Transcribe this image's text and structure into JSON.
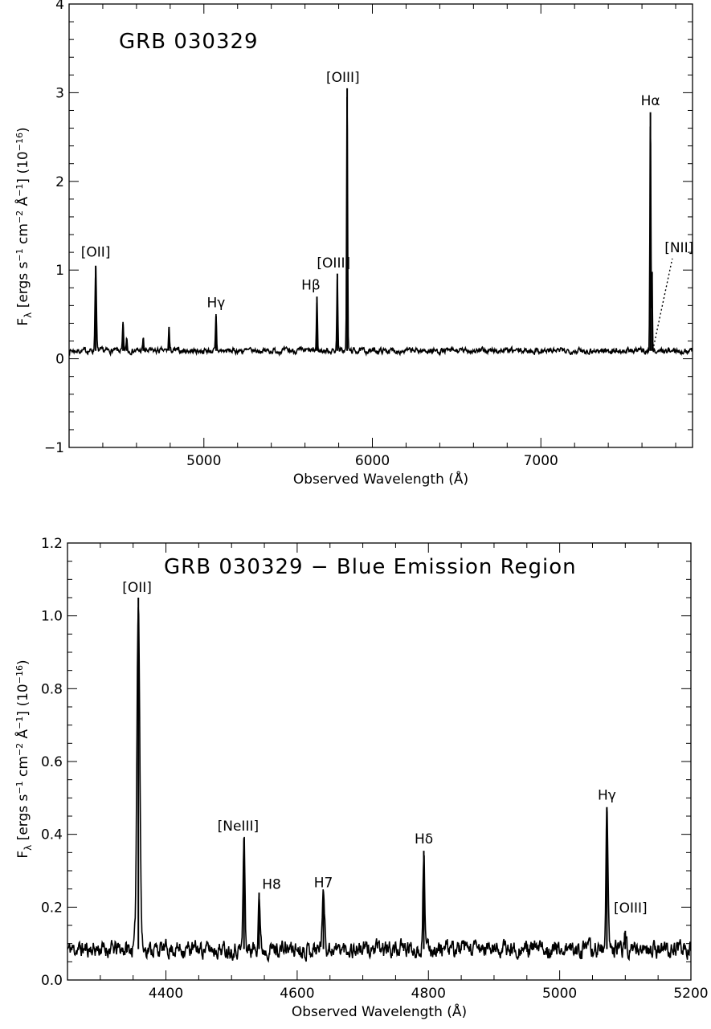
{
  "chart_data": [
    {
      "type": "line",
      "title": "GRB 030329",
      "xlabel": "Observed Wavelength (Å)",
      "ylabel_parts": {
        "f": "F",
        "lambda": "λ",
        "rest": " [ergs s",
        "exp1": "−1",
        "cm": " cm",
        "exp2": "−2",
        "ang": " Å",
        "exp3": "−1",
        "close": "] (10",
        "exp4": "−16",
        "end": ")"
      },
      "xlim": [
        4200,
        7900
      ],
      "ylim": [
        -1,
        4
      ],
      "x_ticks": [
        5000,
        6000,
        7000
      ],
      "x_tick_labels": [
        "5000",
        "6000",
        "7000"
      ],
      "y_ticks": [
        -1,
        0,
        1,
        2,
        3,
        4
      ],
      "y_tick_labels": [
        "−1",
        "0",
        "1",
        "2",
        "3",
        "4"
      ],
      "continuum": 0.09,
      "noise": 0.025,
      "seed": 7,
      "emission_lines": [
        {
          "x": 4358,
          "peak": 1.05,
          "width": 4
        },
        {
          "x": 4520,
          "peak": 0.39,
          "width": 3
        },
        {
          "x": 4542,
          "peak": 0.23,
          "width": 3
        },
        {
          "x": 4640,
          "peak": 0.23,
          "width": 3
        },
        {
          "x": 4793,
          "peak": 0.36,
          "width": 3
        },
        {
          "x": 5072,
          "peak": 0.48,
          "width": 3
        },
        {
          "x": 5671,
          "peak": 0.7,
          "width": 3
        },
        {
          "x": 5792,
          "peak": 0.96,
          "width": 3
        },
        {
          "x": 5850,
          "peak": 3.05,
          "width": 3
        },
        {
          "x": 7650,
          "peak": 2.78,
          "width": 3
        },
        {
          "x": 7660,
          "peak": 0.98,
          "width": 2
        }
      ],
      "annotations": [
        {
          "label": "[OII]",
          "x": 4358,
          "y": 1.15
        },
        {
          "label": "Hγ",
          "x": 5072,
          "y": 0.58
        },
        {
          "label": "Hβ",
          "x": 5635,
          "y": 0.78
        },
        {
          "label": "[OIII]",
          "x": 5770,
          "y": 1.03
        },
        {
          "label": "[OIII]",
          "x": 5825,
          "y": 3.12
        },
        {
          "label": "Hα",
          "x": 7650,
          "y": 2.86
        },
        {
          "label": "[NII]",
          "x": 7820,
          "y": 1.2
        }
      ]
    },
    {
      "type": "line",
      "title": "GRB 030329 − Blue Emission Region",
      "xlabel": "Observed Wavelength (Å)",
      "ylabel_parts": {
        "f": "F",
        "lambda": "λ",
        "rest": " [ergs s",
        "exp1": "−1",
        "cm": " cm",
        "exp2": "−2",
        "ang": " Å",
        "exp3": "−1",
        "close": "] (10",
        "exp4": "−16",
        "end": ")"
      },
      "xlim": [
        4250,
        5200
      ],
      "ylim": [
        0.0,
        1.2
      ],
      "x_ticks": [
        4400,
        4600,
        4800,
        5000,
        5200
      ],
      "x_tick_labels": [
        "4400",
        "4600",
        "4800",
        "5000",
        "5200"
      ],
      "y_ticks": [
        0.0,
        0.2,
        0.4,
        0.6,
        0.8,
        1.0,
        1.2
      ],
      "y_tick_labels": [
        "0.0",
        "0.2",
        "0.4",
        "0.6",
        "0.8",
        "1.0",
        "1.2"
      ],
      "continuum": 0.085,
      "noise": 0.018,
      "seed": 11,
      "emission_lines": [
        {
          "x": 4358,
          "peak": 1.05,
          "width": 2.2
        },
        {
          "x": 4519,
          "peak": 0.39,
          "width": 1.4
        },
        {
          "x": 4542,
          "peak": 0.24,
          "width": 1.4
        },
        {
          "x": 4640,
          "peak": 0.235,
          "width": 2.0
        },
        {
          "x": 4793,
          "peak": 0.355,
          "width": 1.4
        },
        {
          "x": 5072,
          "peak": 0.475,
          "width": 1.5
        },
        {
          "x": 5100,
          "peak": 0.135,
          "width": 1.5
        }
      ],
      "annotations": [
        {
          "label": "[OII]",
          "x": 4356,
          "y": 1.065
        },
        {
          "label": "[NeIII]",
          "x": 4510,
          "y": 0.41
        },
        {
          "label": "H8",
          "x": 4561,
          "y": 0.25
        },
        {
          "label": "H7",
          "x": 4640,
          "y": 0.255
        },
        {
          "label": "Hδ",
          "x": 4793,
          "y": 0.375
        },
        {
          "label": "Hγ",
          "x": 5072,
          "y": 0.495
        },
        {
          "label": "[OIII]",
          "x": 5108,
          "y": 0.185
        }
      ]
    }
  ]
}
